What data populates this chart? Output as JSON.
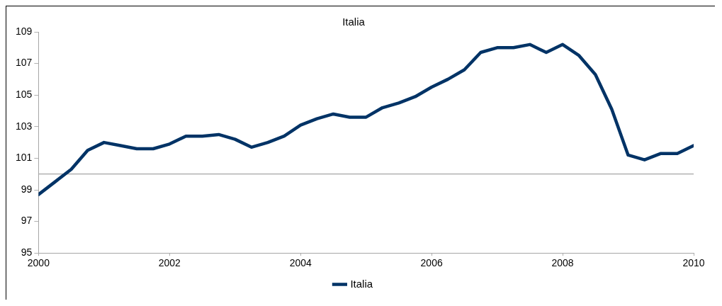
{
  "chart_data": {
    "type": "line",
    "title": "Italia",
    "x": [
      2000,
      2000.25,
      2000.5,
      2000.75,
      2001,
      2001.25,
      2001.5,
      2001.75,
      2002,
      2002.25,
      2002.5,
      2002.75,
      2003,
      2003.25,
      2003.5,
      2003.75,
      2004,
      2004.25,
      2004.5,
      2004.75,
      2005,
      2005.25,
      2005.5,
      2005.75,
      2006,
      2006.25,
      2006.5,
      2006.75,
      2007,
      2007.25,
      2007.5,
      2007.75,
      2008,
      2008.25,
      2008.5,
      2008.75,
      2009,
      2009.25,
      2009.5,
      2009.75,
      2010
    ],
    "series": [
      {
        "name": "Italia",
        "color": "#003366",
        "values": [
          98.7,
          99.5,
          100.3,
          101.5,
          102.0,
          101.8,
          101.6,
          101.6,
          101.9,
          102.4,
          102.4,
          102.5,
          102.2,
          101.7,
          102.0,
          102.4,
          103.1,
          103.5,
          103.8,
          103.6,
          103.6,
          104.2,
          104.5,
          104.9,
          105.5,
          106.0,
          106.6,
          107.7,
          108.0,
          108.0,
          108.2,
          107.7,
          108.2,
          107.5,
          106.3,
          104.1,
          101.2,
          100.9,
          101.3,
          101.3,
          101.8
        ]
      }
    ],
    "xlim": [
      2000,
      2010
    ],
    "xticks": [
      2000,
      2002,
      2004,
      2006,
      2008,
      2010
    ],
    "ylim": [
      95,
      109
    ],
    "yticks": [
      95,
      97,
      99,
      101,
      103,
      105,
      107,
      109
    ],
    "ref_lines": [
      {
        "axis": "y",
        "value": 100,
        "color": "#a6a6a6"
      }
    ],
    "grid": false,
    "legend": "bottom",
    "marker": "none",
    "line_style": "solid"
  }
}
